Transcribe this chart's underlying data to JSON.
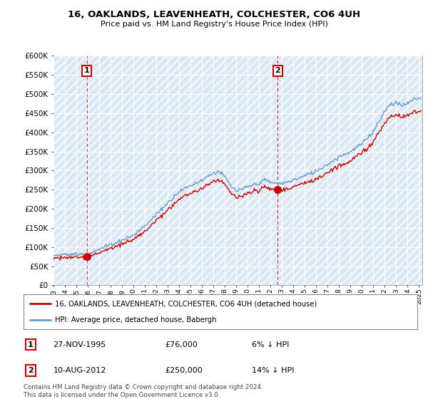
{
  "title": "16, OAKLANDS, LEAVENHEATH, COLCHESTER, CO6 4UH",
  "subtitle": "Price paid vs. HM Land Registry's House Price Index (HPI)",
  "price_paid_color": "#cc0000",
  "hpi_color": "#6699cc",
  "vline1_x": 1995.92,
  "vline2_x": 2012.62,
  "sale1_t": 1995.92,
  "sale1_p": 76000,
  "sale2_t": 2012.62,
  "sale2_p": 250000,
  "annotation1_label": "1",
  "annotation2_label": "2",
  "ylim": [
    0,
    600000
  ],
  "xlim_left": 1993,
  "xlim_right": 2025.3,
  "yticks": [
    0,
    50000,
    100000,
    150000,
    200000,
    250000,
    300000,
    350000,
    400000,
    450000,
    500000,
    550000,
    600000
  ],
  "ytick_labels": [
    "£0",
    "£50K",
    "£100K",
    "£150K",
    "£200K",
    "£250K",
    "£300K",
    "£350K",
    "£400K",
    "£450K",
    "£500K",
    "£550K",
    "£600K"
  ],
  "legend_line1": "16, OAKLANDS, LEAVENHEATH, COLCHESTER, CO6 4UH (detached house)",
  "legend_line2": "HPI: Average price, detached house, Babergh",
  "table_row1": [
    "1",
    "27-NOV-1995",
    "£76,000",
    "6% ↓ HPI"
  ],
  "table_row2": [
    "2",
    "10-AUG-2012",
    "£250,000",
    "14% ↓ HPI"
  ],
  "footer": "Contains HM Land Registry data © Crown copyright and database right 2024.\nThis data is licensed under the Open Government Licence v3.0.",
  "bg_color": "#dce9f5",
  "grid_color": "#ffffff"
}
